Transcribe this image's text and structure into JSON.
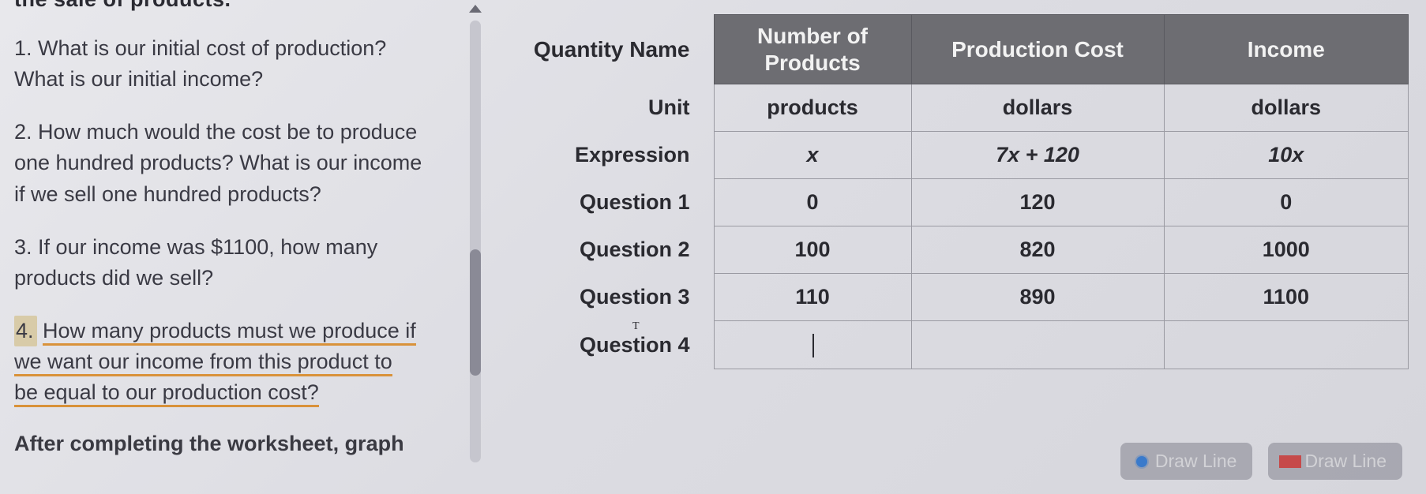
{
  "cutoff_text": "the sale of products.",
  "questions": {
    "q1": {
      "num": "1.",
      "text_a": "What is our initial cost of production?",
      "text_b": "What is our initial income?"
    },
    "q2": {
      "num": "2.",
      "text_a": "How much would the cost be to produce",
      "text_b": "one hundred products? What is our income",
      "text_c": "if we sell one hundred products?"
    },
    "q3": {
      "num": "3.",
      "text_a": "If our income was",
      "amount": "$1100",
      "text_b": ", how many",
      "text_c": "products did we sell?"
    },
    "q4": {
      "num": "4.",
      "line1": "How many products must we produce if",
      "line2": "we want our income from this product to",
      "line3": "be equal to our production cost?"
    }
  },
  "after_text": "After completing the worksheet, graph",
  "table": {
    "headers": {
      "qname": "Quantity Name",
      "col1": "Number of Products",
      "col2": "Production Cost",
      "col3": "Income"
    },
    "rows": {
      "unit": {
        "label": "Unit",
        "c1": "products",
        "c2": "dollars",
        "c3": "dollars"
      },
      "expr": {
        "label": "Expression",
        "c1": "x",
        "c2": "7x + 120",
        "c3": "10x"
      },
      "r1": {
        "label": "Question 1",
        "c1": "0",
        "c2": "120",
        "c3": "0"
      },
      "r2": {
        "label": "Question 2",
        "c1": "100",
        "c2": "820",
        "c3": "1000"
      },
      "r3": {
        "label": "Question 3",
        "c1": "110",
        "c2": "890",
        "c3": "1100"
      },
      "r4": {
        "label": "Question 4",
        "c1": "",
        "c2": "",
        "c3": ""
      }
    },
    "header_bg": "#6d6d72",
    "header_fg": "#f2f2f2",
    "border_color": "#9a9aa2"
  },
  "buttons": {
    "draw1": "Draw Line",
    "draw2": "Draw Line"
  }
}
